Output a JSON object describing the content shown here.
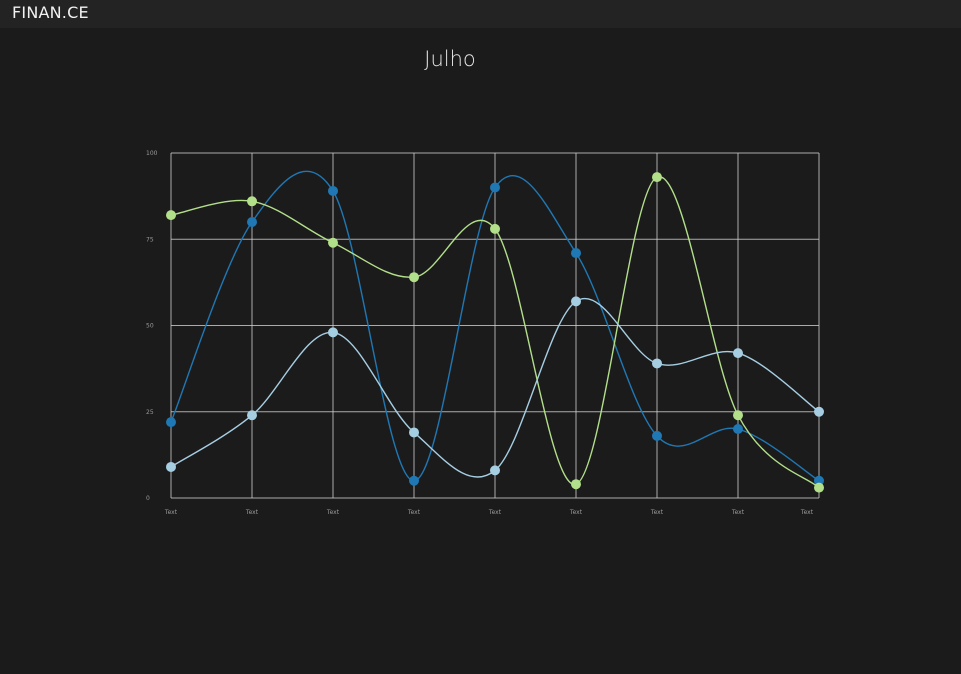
{
  "app": {
    "brand": "FINAN.CE"
  },
  "chart_data": {
    "type": "line",
    "title": "Julho",
    "xlabel": "",
    "ylabel": "",
    "ylim": [
      0,
      100
    ],
    "yticks": [
      "0",
      "25",
      "50",
      "75",
      "100"
    ],
    "categories": [
      "Text",
      "Text",
      "Text",
      "Text",
      "Text",
      "Text",
      "Text",
      "Text",
      "Text"
    ],
    "grid": true,
    "series": [
      {
        "color": "#1f78b4",
        "values": [
          22,
          80,
          89,
          5,
          90,
          71,
          18,
          20,
          5
        ]
      },
      {
        "color": "#b2df8a",
        "values": [
          82,
          86,
          74,
          64,
          78,
          4,
          93,
          24,
          3
        ]
      },
      {
        "color": "#a6cee3",
        "values": [
          9,
          24,
          48,
          19,
          8,
          57,
          39,
          42,
          25
        ]
      }
    ]
  }
}
